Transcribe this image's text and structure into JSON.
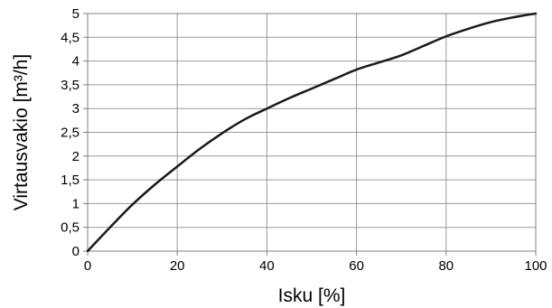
{
  "chart_data": {
    "type": "line",
    "title": "",
    "xlabel": "Isku [%]",
    "ylabel": "Virtausvakio [m³/h]",
    "xlim": [
      0,
      100
    ],
    "ylim": [
      0,
      5
    ],
    "x_ticks": [
      0,
      20,
      40,
      60,
      80,
      100
    ],
    "x_tick_labels": [
      "0",
      "20",
      "40",
      "60",
      "80",
      "100"
    ],
    "y_ticks": [
      0,
      0.5,
      1,
      1.5,
      2,
      2.5,
      3,
      3.5,
      4,
      4.5,
      5
    ],
    "y_tick_labels": [
      "0",
      "0,5",
      "1",
      "1,5",
      "2",
      "2,5",
      "3",
      "3,5",
      "4",
      "4,5",
      "5"
    ],
    "grid": true,
    "legend": "none",
    "series": [
      {
        "x": [
          0,
          5,
          10,
          15,
          20,
          25,
          30,
          35,
          40,
          45,
          50,
          55,
          60,
          65,
          70,
          75,
          80,
          85,
          90,
          95,
          100
        ],
        "y": [
          0,
          0.5,
          0.98,
          1.4,
          1.78,
          2.15,
          2.48,
          2.77,
          3.0,
          3.22,
          3.42,
          3.62,
          3.82,
          3.97,
          4.12,
          4.32,
          4.52,
          4.68,
          4.82,
          4.92,
          5.0
        ]
      }
    ],
    "colors": {
      "line": "#1a1a1a",
      "grid": "#9a9a9a",
      "frame": "#808080"
    }
  }
}
